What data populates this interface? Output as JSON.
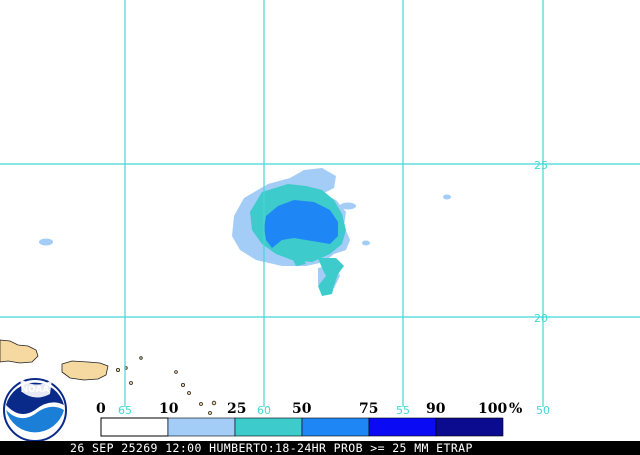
{
  "map": {
    "longitude_labels": [
      "65",
      "60",
      "55",
      "50"
    ],
    "latitude_labels": [
      "25",
      "20"
    ]
  },
  "legend": {
    "ticks": [
      "0",
      "10",
      "25",
      "50",
      "75",
      "90",
      "100"
    ],
    "unit": "%",
    "bins": [
      {
        "range": "0-10",
        "color": "#ffffff"
      },
      {
        "range": "10-25",
        "color": "#a3cdf7"
      },
      {
        "range": "25-50",
        "color": "#3dcbcb"
      },
      {
        "range": "50-75",
        "color": "#1f86f5"
      },
      {
        "range": "75-90",
        "color": "#0a0af5"
      },
      {
        "range": "90-100",
        "color": "#0b0b90"
      }
    ]
  },
  "logo": {
    "text": "NOAA"
  },
  "footer": {
    "text": "26 SEP 25269 12:00 HUMBERTO:18-24HR PROB >= 25 MM ETRAP"
  }
}
